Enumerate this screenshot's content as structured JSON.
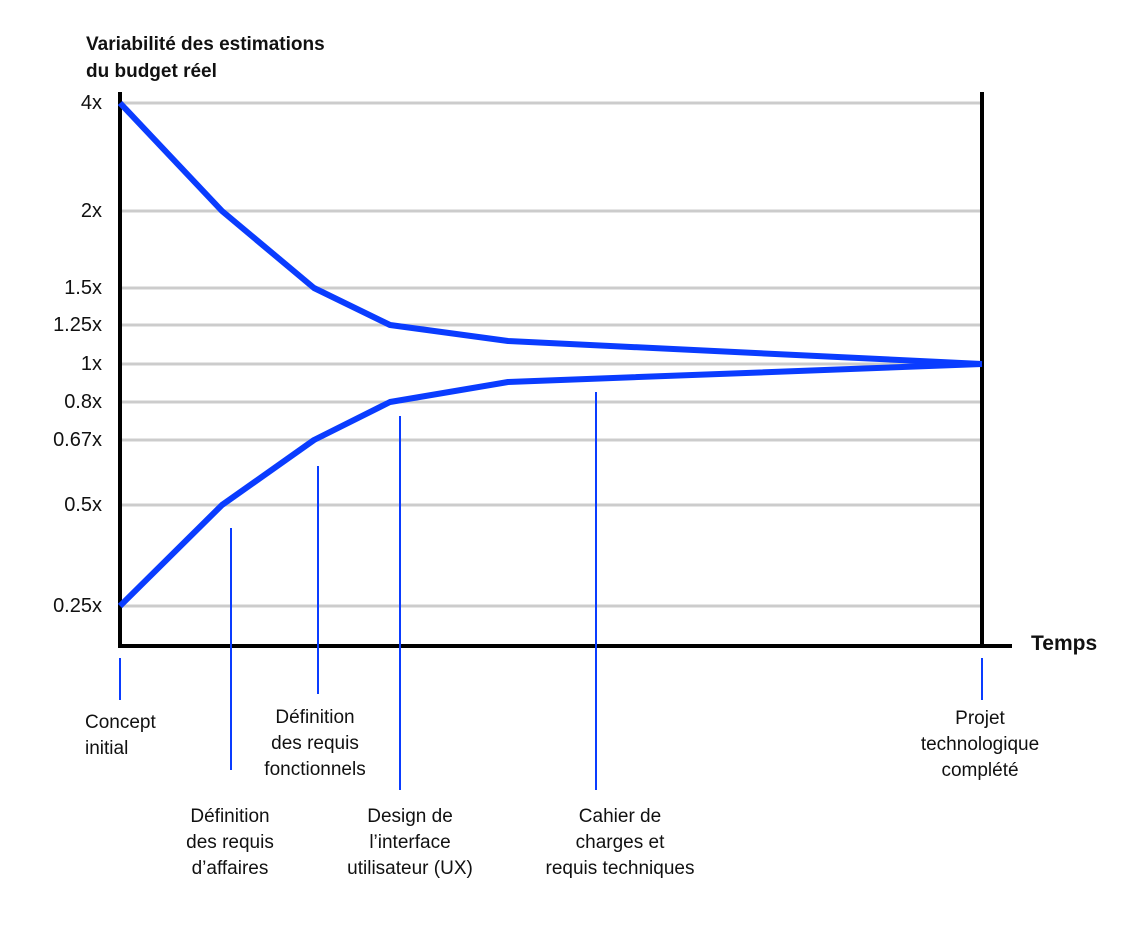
{
  "chart_data": {
    "type": "line",
    "title": "Variabilité des estimations du budget réel",
    "title_lines": [
      "Variabilité des estimations",
      "du budget réel"
    ],
    "ylabel": "Variabilité des estimations du budget réel",
    "xlabel": "Temps",
    "y_scale": "custom (tick-spaced)",
    "y_ticks": [
      {
        "value": 4,
        "label": "4x"
      },
      {
        "value": 2,
        "label": "2x"
      },
      {
        "value": 1.5,
        "label": "1.5x"
      },
      {
        "value": 1.25,
        "label": "1.25x"
      },
      {
        "value": 1,
        "label": "1x"
      },
      {
        "value": 0.8,
        "label": "0.8x"
      },
      {
        "value": 0.67,
        "label": "0.67x"
      },
      {
        "value": 0.5,
        "label": "0.5x"
      },
      {
        "value": 0.25,
        "label": "0.25x"
      }
    ],
    "milestones": [
      {
        "label": "Concept\ninitial"
      },
      {
        "label": "Définition\ndes requis\nd’affaires"
      },
      {
        "label": "Définition\ndes requis\nfonctionnels"
      },
      {
        "label": "Design de\nl’interface\nutilisateur (UX)"
      },
      {
        "label": "Cahier de\ncharges et\nrequis techniques"
      },
      {
        "label": "Projet\ntechnologique\ncomplété"
      }
    ],
    "series": [
      {
        "x": [
          0,
          1,
          2,
          3,
          4,
          5
        ],
        "values": [
          4,
          2,
          1.5,
          1.25,
          1.15,
          1
        ]
      },
      {
        "x": [
          0,
          1,
          2,
          3,
          4,
          5
        ],
        "values": [
          0.25,
          0.5,
          0.67,
          0.8,
          0.9,
          1
        ]
      }
    ],
    "grid": true,
    "line_color": "#0a3cff",
    "grid_color": "#cccccc"
  }
}
